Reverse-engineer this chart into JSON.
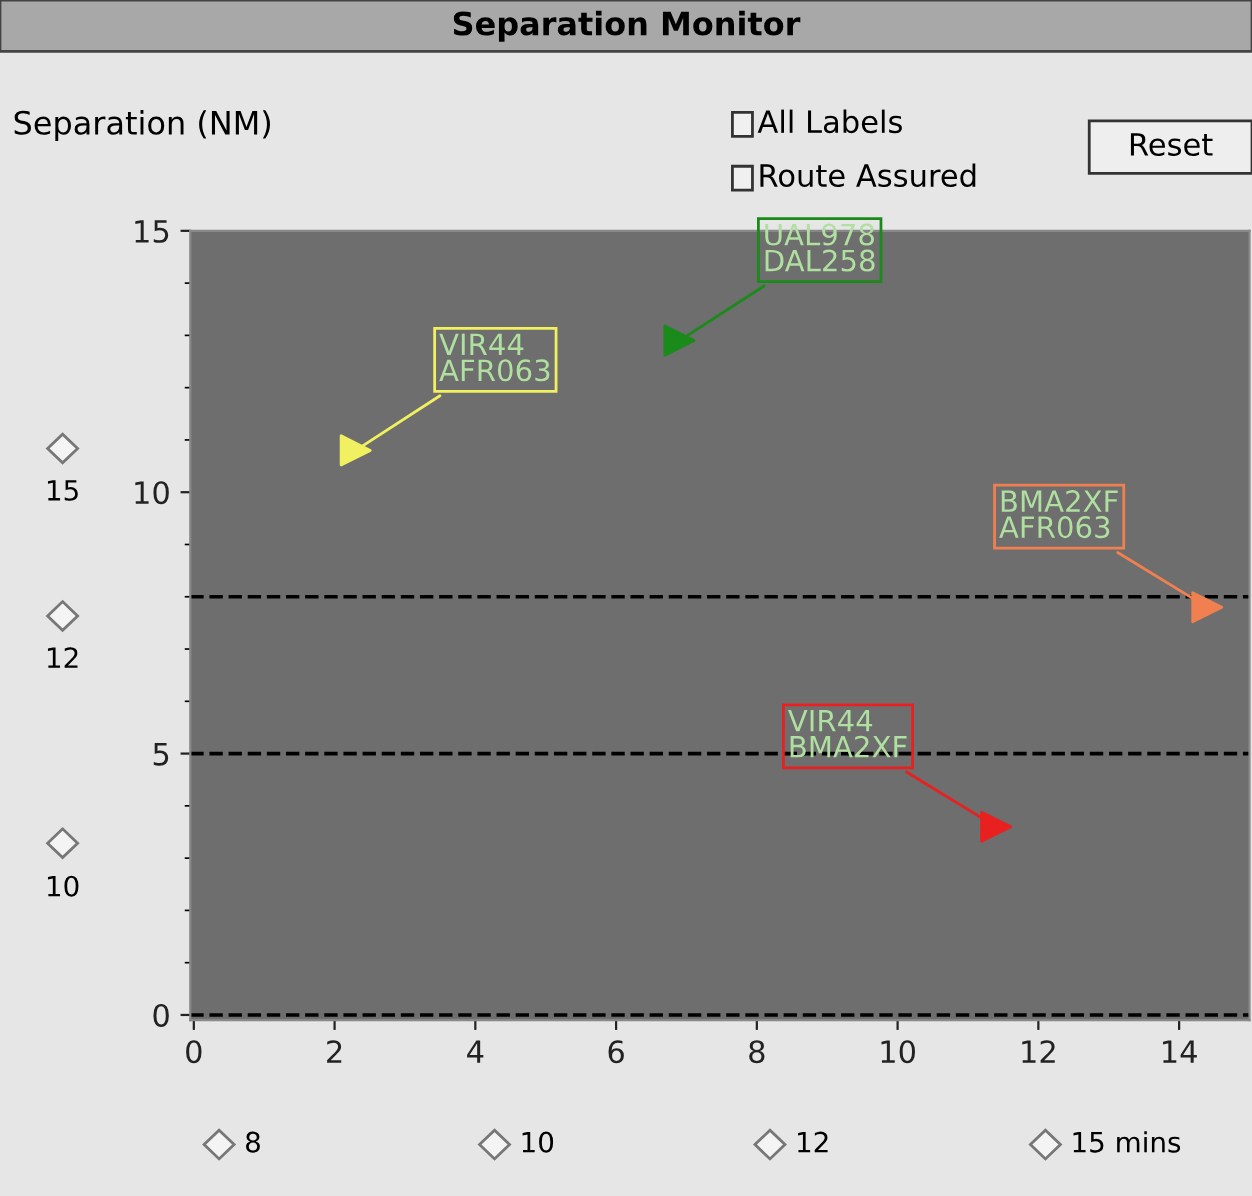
{
  "chart_data": {
    "type": "scatter",
    "title": "Separation Monitor",
    "ylabel": "Separation (NM)",
    "xlim": [
      -0.05,
      15
    ],
    "ylim": [
      -0.1,
      15
    ],
    "xticks": [
      0,
      2,
      4,
      6,
      8,
      10,
      12,
      14
    ],
    "yticks": [
      0,
      5,
      10,
      15
    ],
    "marker": "triangle",
    "grid": false,
    "legend": false,
    "series": [
      {
        "name": "VIR44\nAFR063",
        "color": "#f0f060",
        "x": [
          2.3
        ],
        "values": [
          10.8
        ]
      },
      {
        "name": "UAL978\nDAL258",
        "color": "#1a8a1a",
        "x": [
          6.9
        ],
        "values": [
          12.9
        ]
      },
      {
        "name": "BMA2XF\nAFR063",
        "color": "#f08050",
        "x": [
          14.4
        ],
        "values": [
          7.8
        ]
      },
      {
        "name": "VIR44\nBMA2XF",
        "color": "#e82020",
        "x": [
          11.4
        ],
        "values": [
          3.6
        ]
      }
    ],
    "ref_lines": [
      {
        "axis": "y",
        "value": 8,
        "color": "#000000",
        "line_style": "dashed"
      },
      {
        "axis": "y",
        "value": 5,
        "color": "#000000",
        "line_style": "dashed"
      },
      {
        "axis": "y",
        "value": 0,
        "color": "#000000",
        "line_style": "dashed"
      }
    ],
    "annotations": [
      "All Labels",
      "Route Assured",
      "Reset",
      "15",
      "12",
      "10",
      "8",
      "10",
      "12",
      "15 mins"
    ]
  }
}
